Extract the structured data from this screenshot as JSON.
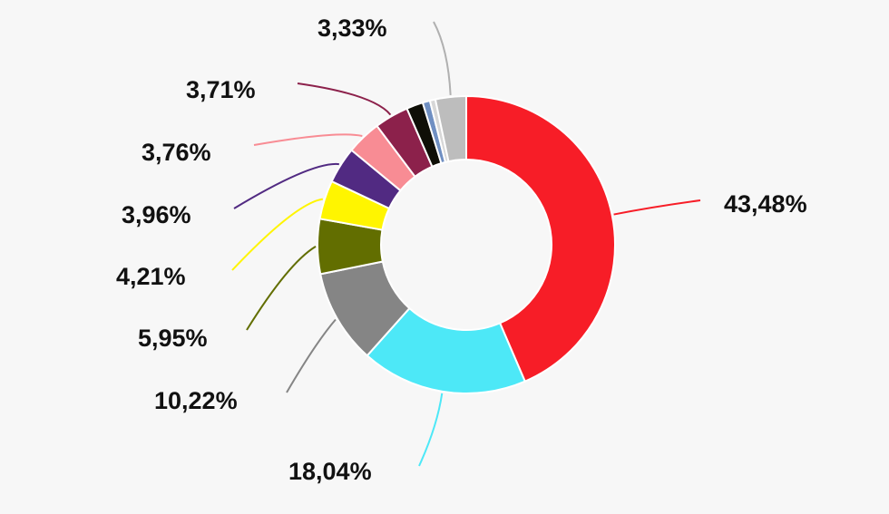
{
  "chart_data": {
    "type": "pie",
    "variant": "donut",
    "title": "",
    "legend": "none",
    "slices": [
      {
        "value": 43.48,
        "label": "43,48%",
        "color": "#f71d27"
      },
      {
        "value": 18.04,
        "label": "18,04%",
        "color": "#4de8f7"
      },
      {
        "value": 10.22,
        "label": "10,22%",
        "color": "#858585"
      },
      {
        "value": 5.95,
        "label": "5,95%",
        "color": "#626e00"
      },
      {
        "value": 4.21,
        "label": "4,21%",
        "color": "#fff500"
      },
      {
        "value": 3.96,
        "label": "3,96%",
        "color": "#512a82"
      },
      {
        "value": 3.76,
        "label": "3,76%",
        "color": "#f88c94"
      },
      {
        "value": 3.71,
        "label": "3,71%",
        "color": "#8c214b"
      },
      {
        "value": 1.8,
        "label": "",
        "color": "#0f0f07"
      },
      {
        "value": 0.8,
        "label": "",
        "color": "#6f8fc2"
      },
      {
        "value": 0.6,
        "label": "",
        "color": "#d7d7d7"
      },
      {
        "value": 3.33,
        "label": "3,33%",
        "color": "#bdbdbd"
      }
    ]
  }
}
